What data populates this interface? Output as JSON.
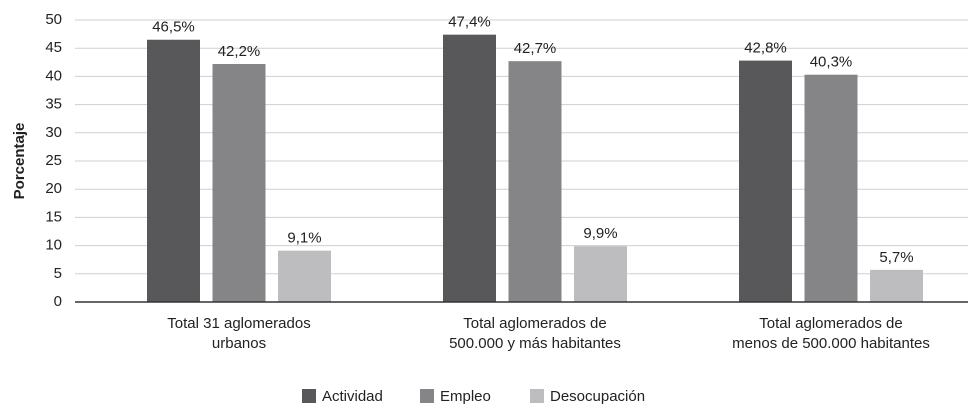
{
  "chart_data": {
    "type": "bar",
    "y_label": "Porcentaje",
    "categories": [
      "Total 31 aglomerados\nurbanos",
      "Total aglomerados de\n500.000 y más habitantes",
      "Total aglomerados de\nmenos de 500.000 habitantes"
    ],
    "series": [
      {
        "name": "Actividad",
        "color": "#58585a",
        "values": [
          46.5,
          47.4,
          42.8
        ],
        "value_labels": [
          "46,5%",
          "47,4%",
          "42,8%"
        ]
      },
      {
        "name": "Empleo",
        "color": "#858587",
        "values": [
          42.2,
          42.7,
          40.3
        ],
        "value_labels": [
          "42,2%",
          "42,7%",
          "40,3%"
        ]
      },
      {
        "name": "Desocupación",
        "color": "#bdbdbf",
        "values": [
          9.1,
          9.9,
          5.7
        ],
        "value_labels": [
          "9,1%",
          "9,9%",
          "5,7%"
        ]
      }
    ],
    "ylim": [
      0,
      50
    ],
    "yticks": [
      0,
      5,
      10,
      15,
      20,
      25,
      30,
      35,
      40,
      45,
      50
    ],
    "grid": true
  }
}
